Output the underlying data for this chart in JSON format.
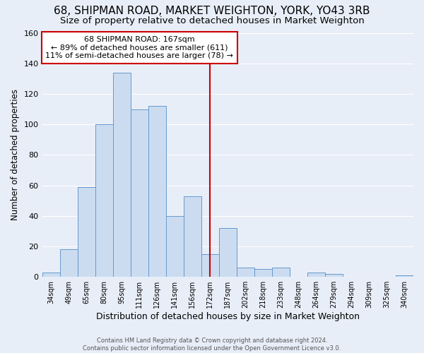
{
  "title": "68, SHIPMAN ROAD, MARKET WEIGHTON, YORK, YO43 3RB",
  "subtitle": "Size of property relative to detached houses in Market Weighton",
  "xlabel": "Distribution of detached houses by size in Market Weighton",
  "ylabel": "Number of detached properties",
  "bar_labels": [
    "34sqm",
    "49sqm",
    "65sqm",
    "80sqm",
    "95sqm",
    "111sqm",
    "126sqm",
    "141sqm",
    "156sqm",
    "172sqm",
    "187sqm",
    "202sqm",
    "218sqm",
    "233sqm",
    "248sqm",
    "264sqm",
    "279sqm",
    "294sqm",
    "309sqm",
    "325sqm",
    "340sqm"
  ],
  "bar_values": [
    3,
    18,
    59,
    100,
    134,
    110,
    112,
    40,
    53,
    15,
    32,
    6,
    5,
    6,
    0,
    3,
    2,
    0,
    0,
    0,
    1
  ],
  "bar_color": "#ccdcf0",
  "bar_edge_color": "#6699cc",
  "vline_x_index": 9,
  "vline_color": "#cc0000",
  "ylim": [
    0,
    160
  ],
  "annotation_title": "68 SHIPMAN ROAD: 167sqm",
  "annotation_line1": "← 89% of detached houses are smaller (611)",
  "annotation_line2": "11% of semi-detached houses are larger (78) →",
  "annotation_box_edge": "#cc0000",
  "footer1": "Contains HM Land Registry data © Crown copyright and database right 2024.",
  "footer2": "Contains public sector information licensed under the Open Government Licence v3.0.",
  "background_color": "#e8eef8",
  "grid_color": "#ffffff",
  "title_fontsize": 11,
  "subtitle_fontsize": 9.5,
  "xlabel_fontsize": 9,
  "ylabel_fontsize": 8.5,
  "annot_fontsize": 8
}
